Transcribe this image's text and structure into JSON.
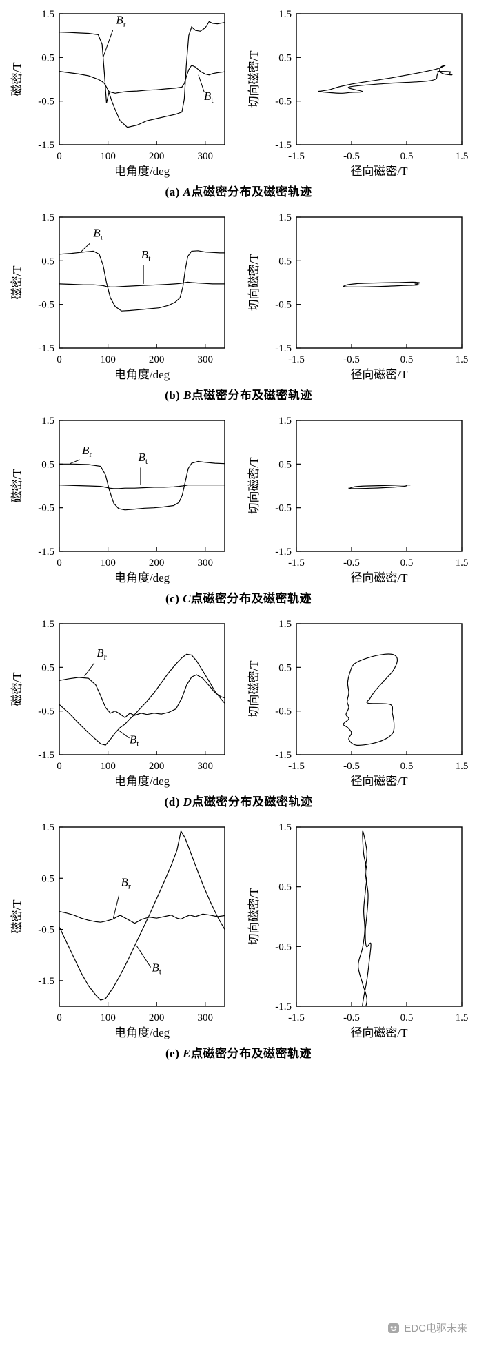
{
  "watermark": {
    "text": "EDC电驱未来",
    "color": "#9e9e9e",
    "icon": "logo-face-icon"
  },
  "chart_data": [
    {
      "id": "a",
      "caption": {
        "index": "(a) ",
        "point": "A",
        "rest": "点磁密分布及磁密轨迹"
      },
      "wave": {
        "type": "line",
        "xlabel": "电角度/deg",
        "ylabel": "磁密/T",
        "xlim": [
          0,
          340
        ],
        "ylim": [
          -1.5,
          1.5
        ],
        "xticks": [
          0,
          100,
          200,
          300
        ],
        "yticks": [
          1.5,
          0.5,
          -0.5,
          -1.5
        ],
        "x": [
          0,
          20,
          40,
          60,
          80,
          88,
          93,
          97,
          102,
          108,
          115,
          125,
          140,
          160,
          180,
          200,
          220,
          240,
          252,
          257,
          261,
          266,
          272,
          280,
          290,
          300,
          308,
          315,
          325,
          340
        ],
        "series": [
          {
            "name": "Br",
            "values": [
              1.08,
              1.07,
              1.06,
              1.05,
              1.02,
              0.8,
              0.1,
              -0.55,
              -0.3,
              -0.5,
              -0.7,
              -0.95,
              -1.1,
              -1.05,
              -0.95,
              -0.9,
              -0.85,
              -0.8,
              -0.75,
              -0.45,
              0.3,
              1.0,
              1.2,
              1.12,
              1.1,
              1.18,
              1.32,
              1.28,
              1.27,
              1.3
            ]
          },
          {
            "name": "Bt",
            "values": [
              0.18,
              0.15,
              0.12,
              0.08,
              0.0,
              -0.05,
              -0.1,
              -0.18,
              -0.28,
              -0.3,
              -0.32,
              -0.3,
              -0.28,
              -0.27,
              -0.25,
              -0.24,
              -0.22,
              -0.2,
              -0.18,
              -0.1,
              0.05,
              0.22,
              0.32,
              0.28,
              0.18,
              0.12,
              0.1,
              0.13,
              0.15,
              0.17
            ]
          }
        ],
        "annotations": [
          {
            "series": "Br",
            "main": "B",
            "sub": "r",
            "label_xy": [
              127,
              1.27
            ],
            "line": [
              [
                110,
                1.12
              ],
              [
                90,
                0.5
              ]
            ]
          },
          {
            "series": "Bt",
            "main": "B",
            "sub": "t",
            "label_xy": [
              307,
              -0.47
            ],
            "line": [
              [
                298,
                -0.3
              ],
              [
                286,
                0.1
              ]
            ]
          }
        ]
      },
      "locus": {
        "type": "line",
        "parametric_of": [
          "Br",
          "Bt"
        ],
        "xlabel": "径向磁密/T",
        "ylabel": "切向磁密/T",
        "xlim": [
          -1.5,
          1.5
        ],
        "ylim": [
          -1.5,
          1.5
        ],
        "xticks": [
          -1.5,
          -0.5,
          0.5,
          1.5
        ],
        "yticks": [
          1.5,
          0.5,
          -0.5,
          -1.5
        ]
      }
    },
    {
      "id": "b",
      "caption": {
        "index": "(b) ",
        "point": "B",
        "rest": "点磁密分布及磁密轨迹"
      },
      "wave": {
        "type": "line",
        "xlabel": "电角度/deg",
        "ylabel": "磁密/T",
        "xlim": [
          0,
          340
        ],
        "ylim": [
          -1.5,
          1.5
        ],
        "xticks": [
          0,
          100,
          200,
          300
        ],
        "yticks": [
          1.5,
          0.5,
          -0.5,
          -1.5
        ],
        "x": [
          0,
          25,
          50,
          70,
          82,
          90,
          97,
          105,
          115,
          128,
          145,
          165,
          185,
          205,
          225,
          238,
          248,
          254,
          259,
          264,
          272,
          285,
          300,
          315,
          330,
          340
        ],
        "series": [
          {
            "name": "Br",
            "values": [
              0.65,
              0.67,
              0.7,
              0.72,
              0.65,
              0.4,
              0.0,
              -0.35,
              -0.55,
              -0.65,
              -0.64,
              -0.62,
              -0.6,
              -0.58,
              -0.52,
              -0.45,
              -0.35,
              -0.1,
              0.3,
              0.6,
              0.72,
              0.73,
              0.7,
              0.69,
              0.68,
              0.68
            ]
          },
          {
            "name": "Bt",
            "values": [
              -0.03,
              -0.04,
              -0.05,
              -0.05,
              -0.06,
              -0.07,
              -0.09,
              -0.1,
              -0.1,
              -0.09,
              -0.08,
              -0.07,
              -0.06,
              -0.05,
              -0.04,
              -0.03,
              -0.02,
              -0.01,
              0.0,
              0.01,
              0.0,
              -0.01,
              -0.02,
              -0.03,
              -0.03,
              -0.03
            ]
          }
        ],
        "annotations": [
          {
            "series": "Br",
            "main": "B",
            "sub": "r",
            "label_xy": [
              80,
              1.05
            ],
            "line": [
              [
                63,
                0.9
              ],
              [
                45,
                0.71
              ]
            ]
          },
          {
            "series": "Bt",
            "main": "B",
            "sub": "t",
            "label_xy": [
              178,
              0.55
            ],
            "line": [
              [
                173,
                0.4
              ],
              [
                173,
                -0.03
              ]
            ]
          }
        ]
      },
      "locus": {
        "type": "line",
        "parametric_of": [
          "Br",
          "Bt"
        ],
        "xlabel": "径向磁密/T",
        "ylabel": "切向磁密/T",
        "xlim": [
          -1.5,
          1.5
        ],
        "ylim": [
          -1.5,
          1.5
        ],
        "xticks": [
          -1.5,
          -0.5,
          0.5,
          1.5
        ],
        "yticks": [
          1.5,
          0.5,
          -0.5,
          -1.5
        ]
      }
    },
    {
      "id": "c",
      "caption": {
        "index": "(c) ",
        "point": "C",
        "rest": "点磁密分布及磁密轨迹"
      },
      "wave": {
        "type": "line",
        "xlabel": "电角度/deg",
        "ylabel": "磁密/T",
        "xlim": [
          0,
          340
        ],
        "ylim": [
          -1.5,
          1.5
        ],
        "xticks": [
          0,
          100,
          200,
          300
        ],
        "yticks": [
          1.5,
          0.5,
          -0.5,
          -1.5
        ],
        "x": [
          0,
          30,
          60,
          85,
          95,
          103,
          112,
          122,
          135,
          155,
          175,
          195,
          215,
          235,
          246,
          253,
          259,
          265,
          272,
          285,
          300,
          320,
          340
        ],
        "series": [
          {
            "name": "Br",
            "values": [
              0.5,
              0.5,
              0.49,
              0.45,
              0.25,
              -0.1,
              -0.4,
              -0.52,
              -0.55,
              -0.53,
              -0.51,
              -0.5,
              -0.48,
              -0.45,
              -0.38,
              -0.2,
              0.1,
              0.4,
              0.52,
              0.56,
              0.54,
              0.52,
              0.51
            ]
          },
          {
            "name": "Bt",
            "values": [
              0.02,
              0.01,
              0.0,
              -0.01,
              -0.03,
              -0.05,
              -0.06,
              -0.06,
              -0.05,
              -0.05,
              -0.04,
              -0.03,
              -0.03,
              -0.02,
              -0.01,
              0.0,
              0.01,
              0.02,
              0.02,
              0.02,
              0.02,
              0.02,
              0.02
            ]
          }
        ],
        "annotations": [
          {
            "series": "Br",
            "main": "B",
            "sub": "r",
            "label_xy": [
              57,
              0.73
            ],
            "line": [
              [
                42,
                0.6
              ],
              [
                22,
                0.51
              ]
            ]
          },
          {
            "series": "Bt",
            "main": "B",
            "sub": "t",
            "label_xy": [
              172,
              0.57
            ],
            "line": [
              [
                167,
                0.42
              ],
              [
                167,
                0.02
              ]
            ]
          }
        ]
      },
      "locus": {
        "type": "line",
        "parametric_of": [
          "Br",
          "Bt"
        ],
        "xlabel": "径向磁密/T",
        "ylabel": "切向磁密/T",
        "xlim": [
          -1.5,
          1.5
        ],
        "ylim": [
          -1.5,
          1.5
        ],
        "xticks": [
          -1.5,
          -0.5,
          0.5,
          1.5
        ],
        "yticks": [
          1.5,
          0.5,
          -0.5,
          -1.5
        ]
      }
    },
    {
      "id": "d",
      "caption": {
        "index": "(d) ",
        "point": "D",
        "rest": "点磁密分布及磁密轨迹"
      },
      "wave": {
        "type": "line",
        "xlabel": "电角度/deg",
        "ylabel": "磁密/T",
        "xlim": [
          0,
          340
        ],
        "ylim": [
          -1.5,
          1.5
        ],
        "xticks": [
          0,
          100,
          200,
          300
        ],
        "yticks": [
          1.5,
          0.5,
          -0.5,
          -1.5
        ],
        "x": [
          0,
          20,
          40,
          60,
          75,
          85,
          95,
          105,
          115,
          125,
          135,
          145,
          155,
          168,
          180,
          195,
          210,
          225,
          240,
          252,
          262,
          272,
          282,
          295,
          308,
          320,
          332,
          340
        ],
        "series": [
          {
            "name": "Br",
            "values": [
              0.2,
              0.24,
              0.27,
              0.25,
              0.1,
              -0.15,
              -0.42,
              -0.55,
              -0.5,
              -0.57,
              -0.65,
              -0.55,
              -0.6,
              -0.55,
              -0.58,
              -0.55,
              -0.57,
              -0.53,
              -0.45,
              -0.2,
              0.1,
              0.28,
              0.33,
              0.25,
              0.08,
              -0.08,
              -0.17,
              -0.2
            ]
          },
          {
            "name": "Bt",
            "values": [
              -0.35,
              -0.55,
              -0.78,
              -1.0,
              -1.15,
              -1.25,
              -1.28,
              -1.15,
              -1.0,
              -0.88,
              -0.8,
              -0.68,
              -0.58,
              -0.42,
              -0.28,
              -0.08,
              0.15,
              0.38,
              0.58,
              0.72,
              0.8,
              0.78,
              0.65,
              0.42,
              0.18,
              -0.05,
              -0.22,
              -0.32
            ]
          }
        ],
        "annotations": [
          {
            "series": "Br",
            "main": "B",
            "sub": "r",
            "label_xy": [
              87,
              0.74
            ],
            "line": [
              [
                72,
                0.6
              ],
              [
                52,
                0.3
              ]
            ]
          },
          {
            "series": "Bt",
            "main": "B",
            "sub": "t",
            "label_xy": [
              154,
              -1.24
            ],
            "line": [
              [
                144,
                -1.12
              ],
              [
                123,
                -0.95
              ]
            ]
          }
        ]
      },
      "locus": {
        "type": "line",
        "parametric_of": [
          "Br",
          "Bt"
        ],
        "xlabel": "径向磁密/T",
        "ylabel": "切向磁密/T",
        "xlim": [
          -1.5,
          1.5
        ],
        "ylim": [
          -1.5,
          1.5
        ],
        "xticks": [
          -1.5,
          -0.5,
          0.5,
          1.5
        ],
        "yticks": [
          1.5,
          0.5,
          -0.5,
          -1.5
        ]
      }
    },
    {
      "id": "e",
      "caption": {
        "index": "(e) ",
        "point": "E",
        "rest": "点磁密分布及磁密轨迹"
      },
      "wave": {
        "type": "line",
        "xlabel": "电角度/deg",
        "ylabel": "磁密/T",
        "xlim": [
          0,
          340
        ],
        "ylim": [
          -2.0,
          1.5
        ],
        "xticks": [
          0,
          100,
          200,
          300
        ],
        "yticks": [
          1.5,
          0.5,
          -0.5,
          -1.5
        ],
        "x": [
          0,
          15,
          30,
          45,
          60,
          75,
          85,
          95,
          110,
          125,
          140,
          155,
          170,
          185,
          200,
          215,
          230,
          242,
          250,
          258,
          268,
          280,
          295,
          310,
          325,
          340
        ],
        "series": [
          {
            "name": "Br",
            "values": [
              -0.15,
              -0.18,
              -0.22,
              -0.28,
              -0.32,
              -0.35,
              -0.36,
              -0.34,
              -0.3,
              -0.22,
              -0.3,
              -0.38,
              -0.3,
              -0.26,
              -0.28,
              -0.25,
              -0.22,
              -0.28,
              -0.3,
              -0.26,
              -0.22,
              -0.25,
              -0.2,
              -0.22,
              -0.25,
              -0.23
            ]
          },
          {
            "name": "Bt",
            "values": [
              -0.45,
              -0.75,
              -1.05,
              -1.35,
              -1.6,
              -1.78,
              -1.88,
              -1.85,
              -1.65,
              -1.4,
              -1.12,
              -0.82,
              -0.52,
              -0.22,
              0.1,
              0.42,
              0.75,
              1.05,
              1.42,
              1.3,
              1.05,
              0.75,
              0.38,
              0.05,
              -0.25,
              -0.5
            ]
          }
        ],
        "annotations": [
          {
            "series": "Br",
            "main": "B",
            "sub": "r",
            "label_xy": [
              137,
              0.35
            ],
            "line": [
              [
                123,
                0.18
              ],
              [
                111,
                -0.28
              ]
            ]
          },
          {
            "series": "Bt",
            "main": "B",
            "sub": "t",
            "label_xy": [
              200,
              -1.32
            ],
            "line": [
              [
                188,
                -1.24
              ],
              [
                159,
                -0.82
              ]
            ]
          }
        ]
      },
      "locus": {
        "type": "line",
        "parametric_of": [
          "Br",
          "Bt"
        ],
        "xlabel": "径向磁密/T",
        "ylabel": "切向磁密/T",
        "xlim": [
          -1.5,
          1.5
        ],
        "ylim": [
          -1.5,
          1.5
        ],
        "xticks": [
          -1.5,
          -0.5,
          0.5,
          1.5
        ],
        "yticks": [
          1.5,
          0.5,
          -0.5,
          -1.5
        ]
      }
    }
  ]
}
